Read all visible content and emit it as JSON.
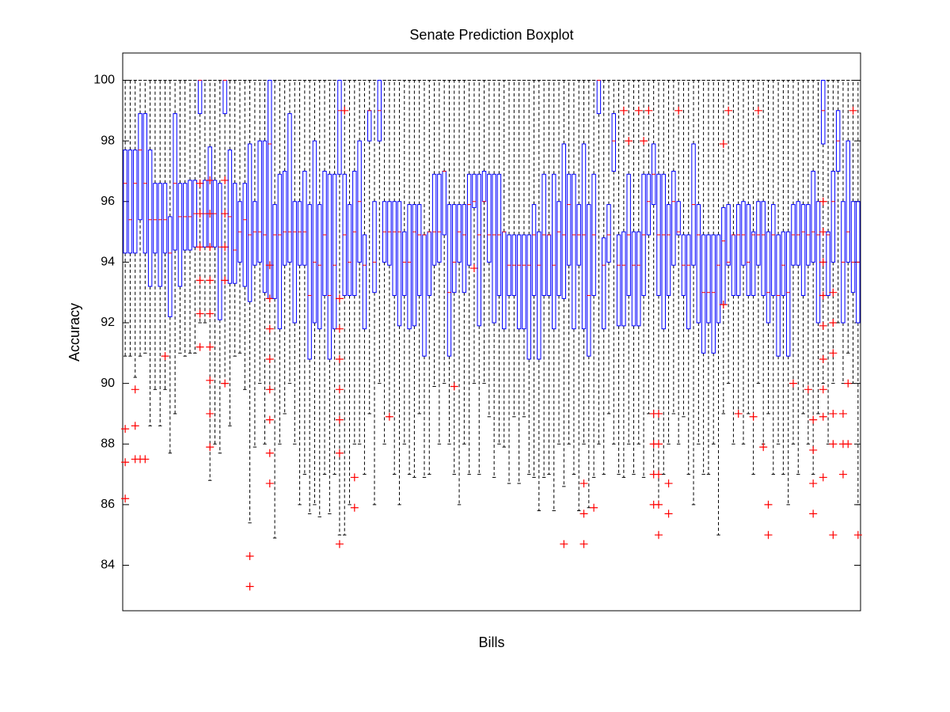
{
  "chart_data": {
    "type": "boxplot",
    "title": "Senate Prediction Boxplot",
    "x_label": "Bills",
    "y_label": "Accuracy",
    "ylim": [
      82.5,
      100.9
    ],
    "yticks": [
      84,
      86,
      88,
      90,
      92,
      94,
      96,
      98,
      100
    ],
    "box_color": "#0000ff",
    "median_color": "#ff0000",
    "whisker_color": "#000000",
    "flier_color": "#ff0000",
    "boxes": [
      [
        90.9,
        94.3,
        96.6,
        97.7,
        100
      ],
      [
        90.9,
        94.3,
        95.4,
        97.7,
        100
      ],
      [
        90.2,
        94.3,
        96.6,
        97.7,
        100
      ],
      [
        90.9,
        95.4,
        97.7,
        98.9,
        100
      ],
      [
        91.0,
        94.3,
        96.6,
        98.9,
        100
      ],
      [
        88.6,
        93.2,
        95.4,
        97.7,
        100
      ],
      [
        89.8,
        94.3,
        95.4,
        96.6,
        100
      ],
      [
        88.6,
        93.2,
        95.4,
        96.6,
        100
      ],
      [
        89.8,
        94.3,
        95.4,
        96.6,
        100
      ],
      [
        87.7,
        92.2,
        94.3,
        95.5,
        100
      ],
      [
        89.0,
        94.4,
        96.6,
        98.9,
        100
      ],
      [
        91.0,
        93.2,
        95.5,
        96.6,
        100
      ],
      [
        90.9,
        94.4,
        95.5,
        96.6,
        100
      ],
      [
        91.0,
        94.4,
        95.5,
        96.7,
        100
      ],
      [
        91.0,
        94.5,
        95.6,
        96.7,
        100
      ],
      [
        92.0,
        98.9,
        100,
        100,
        100
      ],
      [
        92.0,
        94.5,
        95.6,
        96.7,
        100
      ],
      [
        86.8,
        94.5,
        95.6,
        97.8,
        100
      ],
      [
        88.0,
        94.5,
        95.6,
        96.7,
        100
      ],
      [
        87.7,
        92.1,
        94.5,
        96.6,
        100
      ],
      [
        90.0,
        98.9,
        100,
        100,
        100
      ],
      [
        88.6,
        93.3,
        95.5,
        97.7,
        100
      ],
      [
        90.9,
        93.3,
        94.4,
        96.6,
        100
      ],
      [
        91.0,
        94.0,
        95.0,
        96.0,
        100
      ],
      [
        89.8,
        93.2,
        95.4,
        96.6,
        100
      ],
      [
        85.4,
        92.7,
        94.9,
        97.9,
        100
      ],
      [
        87.9,
        93.9,
        95.0,
        96.0,
        100
      ],
      [
        90.0,
        94.0,
        95.0,
        98.0,
        100
      ],
      [
        88.0,
        93.0,
        94.9,
        98.0,
        100
      ],
      [
        89.8,
        92.8,
        97.9,
        100,
        100
      ],
      [
        84.9,
        92.8,
        94.9,
        95.9,
        100
      ],
      [
        88.0,
        91.8,
        94.9,
        96.9,
        100
      ],
      [
        89.0,
        93.9,
        95.0,
        97.0,
        100
      ],
      [
        90.0,
        94.0,
        95.0,
        98.9,
        100
      ],
      [
        88.0,
        92.0,
        95.0,
        96.0,
        100
      ],
      [
        86.0,
        93.9,
        95.0,
        96.0,
        100
      ],
      [
        87.0,
        93.9,
        95.0,
        97.0,
        100
      ],
      [
        85.7,
        90.8,
        92.9,
        95.9,
        100
      ],
      [
        86.0,
        92.0,
        94.0,
        98.0,
        100
      ],
      [
        85.6,
        91.8,
        93.9,
        95.9,
        100
      ],
      [
        87.0,
        92.9,
        94.9,
        97.0,
        100
      ],
      [
        85.7,
        90.8,
        92.9,
        96.9,
        100
      ],
      [
        87.0,
        91.8,
        93.9,
        96.9,
        100
      ],
      [
        85.0,
        96.9,
        99.0,
        100,
        100
      ],
      [
        85.0,
        92.9,
        94.9,
        96.9,
        100
      ],
      [
        86.0,
        92.9,
        94.0,
        95.9,
        100
      ],
      [
        88.0,
        92.9,
        95.0,
        97.0,
        100
      ],
      [
        88.0,
        94.0,
        96.0,
        98.0,
        100
      ],
      [
        87.0,
        91.8,
        93.9,
        94.9,
        100
      ],
      [
        89.0,
        98.0,
        99.0,
        99.0,
        100
      ],
      [
        86.0,
        93.0,
        94.0,
        96.0,
        100
      ],
      [
        90.0,
        98.0,
        99.0,
        100,
        100
      ],
      [
        88.0,
        94.0,
        95.0,
        96.0,
        100
      ],
      [
        88.9,
        93.9,
        95.0,
        96.0,
        100
      ],
      [
        87.0,
        92.9,
        95.0,
        96.0,
        100
      ],
      [
        86.0,
        91.9,
        95.0,
        96.0,
        100
      ],
      [
        88.0,
        92.9,
        94.0,
        95.0,
        100
      ],
      [
        87.0,
        91.8,
        94.0,
        95.9,
        100
      ],
      [
        86.9,
        91.9,
        95.0,
        95.9,
        100
      ],
      [
        89.0,
        92.9,
        94.9,
        95.9,
        100
      ],
      [
        86.9,
        90.9,
        94.9,
        94.9,
        100
      ],
      [
        87.0,
        92.9,
        95.0,
        95.0,
        100
      ],
      [
        89.9,
        93.9,
        95.0,
        96.9,
        100
      ],
      [
        88.0,
        94.0,
        95.0,
        96.9,
        100
      ],
      [
        90.0,
        94.9,
        97.0,
        97.0,
        100
      ],
      [
        88.0,
        90.9,
        93.0,
        95.9,
        100
      ],
      [
        87.0,
        93.0,
        94.0,
        95.9,
        100
      ],
      [
        86.0,
        94.0,
        95.0,
        95.9,
        100
      ],
      [
        88.0,
        93.0,
        94.9,
        95.9,
        100
      ],
      [
        87.0,
        93.9,
        95.9,
        96.9,
        100
      ],
      [
        90.0,
        95.8,
        96.0,
        96.9,
        100
      ],
      [
        87.0,
        91.9,
        94.9,
        96.9,
        100
      ],
      [
        90.0,
        96.0,
        96.0,
        97.0,
        100
      ],
      [
        88.9,
        94.0,
        94.9,
        96.9,
        100
      ],
      [
        86.9,
        92.0,
        94.9,
        96.9,
        100
      ],
      [
        88.0,
        92.9,
        94.9,
        96.9,
        100
      ],
      [
        87.9,
        91.8,
        95.0,
        95.0,
        100
      ],
      [
        86.7,
        92.9,
        93.9,
        94.9,
        100
      ],
      [
        88.9,
        92.9,
        93.9,
        94.9,
        100
      ],
      [
        86.7,
        91.8,
        93.9,
        94.9,
        100
      ],
      [
        88.9,
        91.8,
        93.9,
        94.9,
        100
      ],
      [
        87.0,
        90.8,
        93.9,
        94.9,
        100
      ],
      [
        86.9,
        92.9,
        94.9,
        95.9,
        100
      ],
      [
        85.8,
        90.8,
        93.9,
        95.0,
        100
      ],
      [
        86.9,
        92.9,
        94.9,
        96.9,
        100
      ],
      [
        87.0,
        92.9,
        94.9,
        94.9,
        100
      ],
      [
        85.8,
        91.8,
        93.9,
        96.9,
        100
      ],
      [
        88.0,
        92.9,
        95.0,
        96.0,
        100
      ],
      [
        86.6,
        92.8,
        94.9,
        97.9,
        100
      ],
      [
        88.0,
        93.9,
        95.9,
        96.9,
        100
      ],
      [
        87.0,
        91.8,
        94.9,
        96.9,
        100
      ],
      [
        85.8,
        93.9,
        94.9,
        95.9,
        100
      ],
      [
        88.0,
        91.8,
        94.9,
        97.9,
        100
      ],
      [
        85.9,
        90.9,
        92.9,
        95.9,
        100
      ],
      [
        86.9,
        92.9,
        94.9,
        96.9,
        100
      ],
      [
        88.0,
        98.9,
        100,
        100,
        100
      ],
      [
        87.0,
        91.8,
        93.9,
        94.8,
        100
      ],
      [
        89.0,
        94.0,
        94.9,
        95.9,
        100
      ],
      [
        88.0,
        97.0,
        98.0,
        98.9,
        100
      ],
      [
        87.0,
        91.9,
        93.9,
        94.9,
        100
      ],
      [
        86.9,
        91.9,
        93.9,
        95.0,
        100
      ],
      [
        88.0,
        92.9,
        94.9,
        96.9,
        100
      ],
      [
        87.0,
        91.9,
        93.9,
        95.0,
        100
      ],
      [
        88.0,
        91.9,
        93.9,
        95.0,
        100
      ],
      [
        86.9,
        92.9,
        94.9,
        96.9,
        100
      ],
      [
        89.0,
        94.9,
        96.0,
        96.9,
        100
      ],
      [
        87.0,
        95.9,
        96.9,
        97.9,
        100
      ],
      [
        86.0,
        92.9,
        94.9,
        96.9,
        100
      ],
      [
        87.0,
        91.8,
        94.9,
        96.9,
        100
      ],
      [
        88.0,
        92.9,
        94.9,
        95.9,
        100
      ],
      [
        89.0,
        93.9,
        96.0,
        97.0,
        100
      ],
      [
        88.0,
        94.9,
        95.0,
        96.0,
        100
      ],
      [
        88.9,
        92.9,
        93.9,
        94.9,
        100
      ],
      [
        87.0,
        91.8,
        93.9,
        94.9,
        100
      ],
      [
        86.0,
        93.9,
        95.9,
        97.9,
        100
      ],
      [
        88.0,
        92.0,
        94.9,
        95.9,
        100
      ],
      [
        87.0,
        91.0,
        93.0,
        94.9,
        100
      ],
      [
        87.0,
        92.0,
        93.0,
        94.9,
        100
      ],
      [
        88.0,
        91.0,
        93.0,
        94.9,
        100
      ],
      [
        85.0,
        92.0,
        93.9,
        94.9,
        100
      ],
      [
        89.0,
        92.6,
        94.7,
        95.8,
        100
      ],
      [
        90.0,
        93.9,
        94.0,
        95.9,
        100
      ],
      [
        88.0,
        92.9,
        94.9,
        94.9,
        100
      ],
      [
        89.0,
        92.9,
        94.9,
        95.9,
        100
      ],
      [
        88.0,
        93.9,
        94.9,
        96.0,
        100
      ],
      [
        89.0,
        92.9,
        94.0,
        95.9,
        100
      ],
      [
        87.0,
        92.9,
        94.9,
        95.0,
        100
      ],
      [
        90.0,
        93.9,
        94.9,
        96.0,
        100
      ],
      [
        88.0,
        92.9,
        94.9,
        96.0,
        100
      ],
      [
        89.0,
        92.0,
        93.0,
        95.0,
        100
      ],
      [
        87.0,
        92.9,
        94.9,
        95.9,
        100
      ],
      [
        88.0,
        90.9,
        92.9,
        94.9,
        100
      ],
      [
        87.0,
        92.9,
        93.9,
        95.0,
        100
      ],
      [
        86.0,
        90.9,
        93.0,
        95.0,
        100
      ],
      [
        88.0,
        93.9,
        94.9,
        95.9,
        100
      ],
      [
        87.0,
        93.9,
        94.9,
        96.0,
        100
      ],
      [
        89.0,
        92.9,
        95.0,
        95.9,
        100
      ],
      [
        88.0,
        93.9,
        94.9,
        95.9,
        100
      ],
      [
        87.0,
        94.0,
        95.0,
        97.0,
        100
      ],
      [
        89.0,
        92.0,
        94.9,
        96.0,
        100
      ],
      [
        90.0,
        97.9,
        99.0,
        100,
        100
      ],
      [
        88.0,
        92.9,
        94.9,
        95.0,
        100
      ],
      [
        90.0,
        94.0,
        96.0,
        97.0,
        100
      ],
      [
        92.0,
        97.0,
        98.0,
        99.0,
        100
      ],
      [
        90.0,
        92.0,
        94.0,
        96.0,
        100
      ],
      [
        91.0,
        94.0,
        95.0,
        98.0,
        100
      ],
      [
        90.0,
        93.0,
        94.0,
        96.0,
        100
      ],
      [
        86.0,
        92.0,
        94.0,
        96.0,
        100
      ]
    ],
    "fliers": [
      [
        88.5,
        87.4,
        86.2
      ],
      [],
      [
        89.8,
        88.6,
        87.5
      ],
      [
        87.5
      ],
      [
        87.5
      ],
      [],
      [],
      [],
      [
        90.9
      ],
      [],
      [],
      [],
      [],
      [],
      [],
      [
        96.6,
        95.6,
        94.5,
        93.4,
        92.3,
        91.2
      ],
      [],
      [
        96.7,
        95.6,
        94.5,
        93.4,
        92.3,
        91.2,
        90.1,
        89.0,
        87.9
      ],
      [],
      [],
      [
        96.7,
        95.6,
        94.5,
        93.4,
        90.0
      ],
      [],
      [],
      [],
      [],
      [
        84.3,
        83.3
      ],
      [],
      [],
      [],
      [
        93.9,
        92.8,
        91.8,
        90.8,
        89.8,
        88.8,
        87.7,
        86.7
      ],
      [],
      [],
      [],
      [],
      [],
      [],
      [],
      [],
      [],
      [],
      [],
      [],
      [],
      [
        92.8,
        91.8,
        90.8,
        89.8,
        88.8,
        87.7,
        84.7
      ],
      [
        99.0
      ],
      [],
      [
        86.9,
        85.9
      ],
      [],
      [],
      [],
      [],
      [],
      [],
      [
        88.9
      ],
      [],
      [],
      [],
      [],
      [],
      [],
      [],
      [],
      [],
      [],
      [],
      [],
      [
        89.9
      ],
      [],
      [],
      [],
      [
        93.8
      ],
      [],
      [],
      [],
      [],
      [],
      [],
      [],
      [],
      [],
      [],
      [],
      [],
      [],
      [],
      [],
      [],
      [],
      [
        84.7
      ],
      [],
      [],
      [],
      [
        86.7,
        85.7,
        84.7
      ],
      [],
      [
        85.9
      ],
      [],
      [],
      [],
      [],
      [],
      [
        99.0
      ],
      [
        98.0
      ],
      [],
      [
        99.0
      ],
      [
        98.0
      ],
      [
        99.0
      ],
      [
        89.0,
        88.0,
        87.0,
        86.0
      ],
      [
        89.0,
        88.0,
        87.0,
        86.0,
        85.0
      ],
      [],
      [
        86.7,
        85.7
      ],
      [],
      [
        99.0
      ],
      [],
      [],
      [],
      [],
      [],
      [],
      [],
      [],
      [
        97.9,
        92.6
      ],
      [
        99.0
      ],
      [],
      [
        89.0
      ],
      [],
      [],
      [
        88.9
      ],
      [
        99.0
      ],
      [
        87.9
      ],
      [
        86.0,
        85.0
      ],
      [],
      [],
      [],
      [],
      [
        90.0
      ],
      [],
      [],
      [
        89.8
      ],
      [
        88.8,
        87.8,
        86.7,
        85.7
      ],
      [],
      [
        96.0,
        95.0,
        94.0,
        92.9,
        91.9,
        90.8,
        89.8,
        88.9,
        86.9
      ],
      [],
      [
        93.0,
        92.0,
        91.0,
        89.0,
        88.0,
        85.0
      ],
      [],
      [
        89.0,
        88.0,
        87.0
      ],
      [
        90.0,
        88.0
      ],
      [
        99.0
      ],
      [
        85.0
      ]
    ]
  }
}
